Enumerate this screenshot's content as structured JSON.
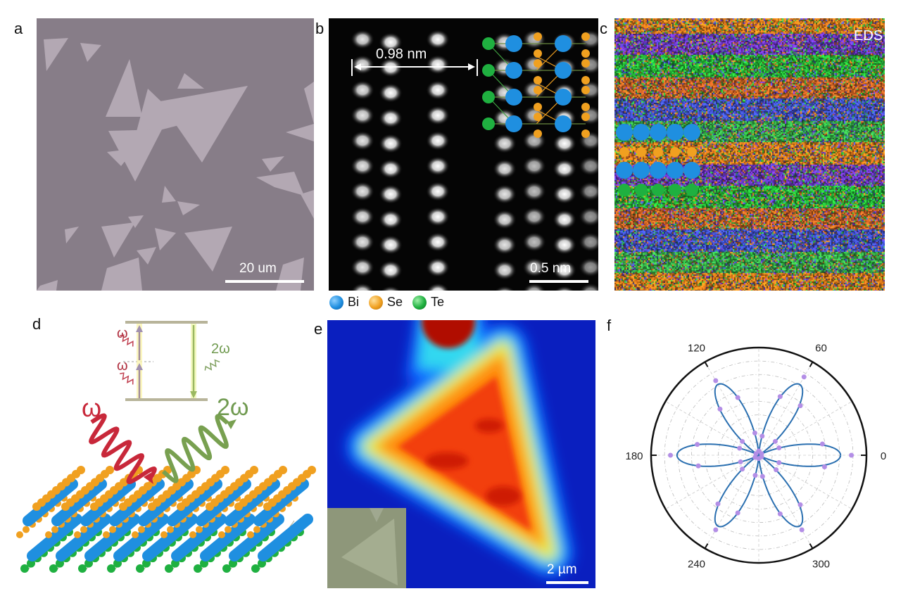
{
  "panels": {
    "a": {
      "label": "a",
      "scale_bar": "20 um"
    },
    "b": {
      "label": "b",
      "distance": "0.98  nm",
      "scale_bar": "0.5  nm"
    },
    "c": {
      "label": "c",
      "title": "EDS"
    },
    "d": {
      "label": "d",
      "omega": "ω",
      "two_omega": "2ω"
    },
    "e": {
      "label": "e",
      "scale_bar": "2 µm"
    },
    "f": {
      "label": "f"
    }
  },
  "legend": [
    {
      "label": "Bi",
      "color": "#1f8fe0"
    },
    {
      "label": "Se",
      "color": "#f0a020"
    },
    {
      "label": "Te",
      "color": "#1fb040"
    }
  ],
  "colors": {
    "fit_line": "#2a6fb0",
    "points": "#b38ee6",
    "substrate": "#877d88",
    "flake": "#b7acb7"
  },
  "chart_data": {
    "type": "polar-scatter",
    "angle_ticks": [
      "0",
      "60",
      "120",
      "180",
      "240",
      "300"
    ],
    "angle_tick_values": [
      0,
      60,
      120,
      180,
      240,
      300
    ],
    "fit": {
      "model": "A·cos²(3θ)",
      "amplitude": 0.76
    },
    "r_max": 1.0,
    "grid": true,
    "points": {
      "theta": [
        0,
        10,
        20,
        30,
        40,
        50,
        60,
        70,
        80,
        90,
        100,
        110,
        120,
        130,
        140,
        150,
        160,
        170,
        180,
        190,
        200,
        210,
        220,
        230,
        240,
        250,
        260,
        270,
        280,
        290,
        300,
        310,
        320,
        330,
        340,
        350
      ],
      "r": [
        0.86,
        0.6,
        0.2,
        0.03,
        0.2,
        0.6,
        0.84,
        0.58,
        0.18,
        0.04,
        0.21,
        0.57,
        0.8,
        0.56,
        0.2,
        0.03,
        0.19,
        0.58,
        0.82,
        0.57,
        0.18,
        0.04,
        0.2,
        0.59,
        0.8,
        0.57,
        0.19,
        0.03,
        0.2,
        0.58,
        0.8,
        0.6,
        0.21,
        0.03,
        0.2,
        0.62
      ]
    }
  }
}
